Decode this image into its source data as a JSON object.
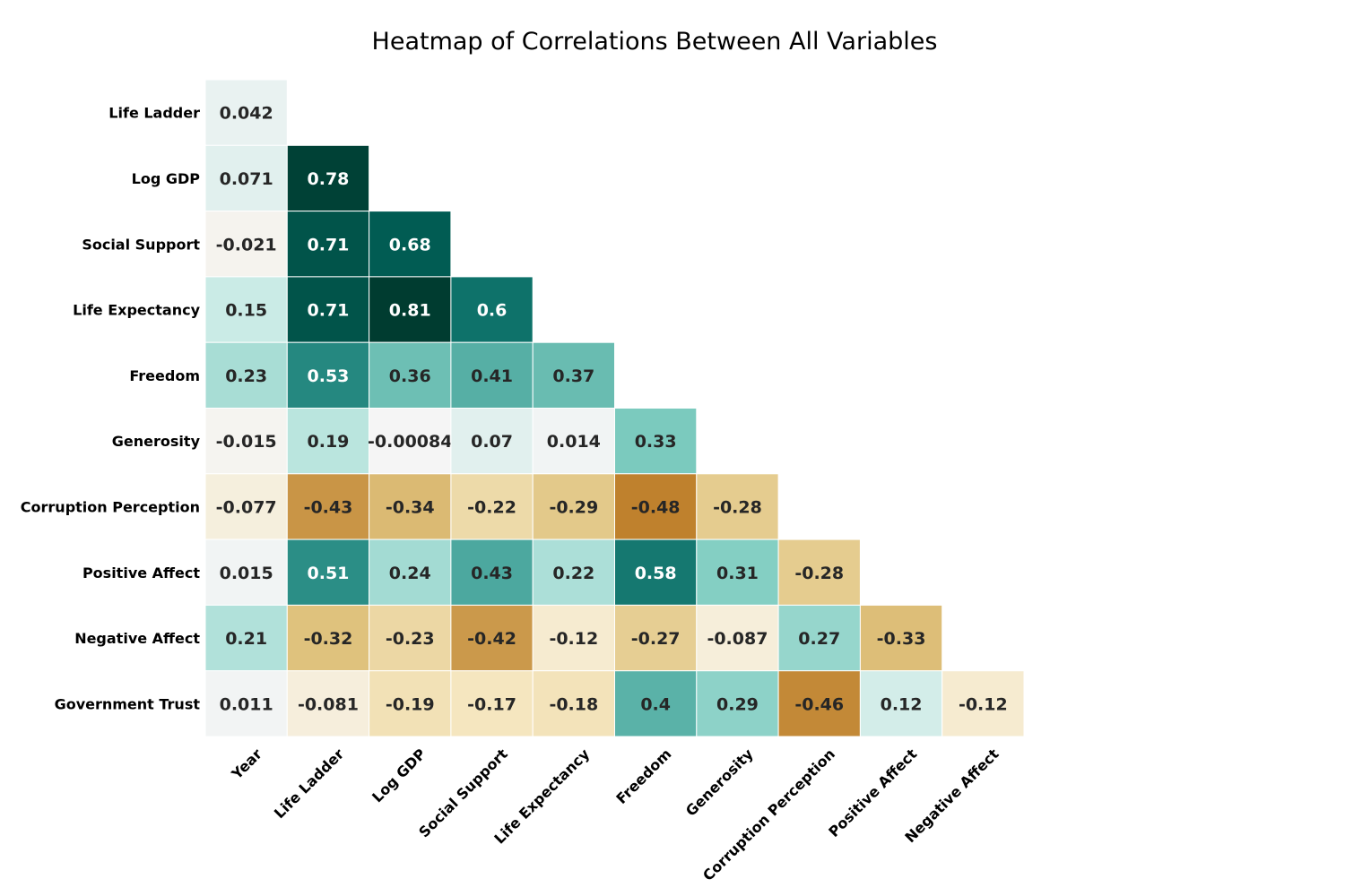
{
  "chart_data": {
    "type": "heatmap",
    "title": "Heatmap of Correlations Between All Variables",
    "colormap": "BrBG",
    "value_range": [
      -0.8,
      0.8
    ],
    "x_labels": [
      "Year",
      "Life Ladder",
      "Log GDP",
      "Social Support",
      "Life Expectancy",
      "Freedom",
      "Generosity",
      "Corruption Perception",
      "Positive Affect",
      "Negative Affect"
    ],
    "y_labels": [
      "Life Ladder",
      "Log GDP",
      "Social Support",
      "Life Expectancy",
      "Freedom",
      "Generosity",
      "Corruption Perception",
      "Positive Affect",
      "Negative Affect",
      "Government Trust"
    ],
    "values": [
      [
        0.042
      ],
      [
        0.071,
        0.78
      ],
      [
        -0.021,
        0.71,
        0.68
      ],
      [
        0.15,
        0.71,
        0.81,
        0.6
      ],
      [
        0.23,
        0.53,
        0.36,
        0.41,
        0.37
      ],
      [
        -0.015,
        0.19,
        -0.00084,
        0.07,
        0.014,
        0.33
      ],
      [
        -0.077,
        -0.43,
        -0.34,
        -0.22,
        -0.29,
        -0.48,
        -0.28
      ],
      [
        0.015,
        0.51,
        0.24,
        0.43,
        0.22,
        0.58,
        0.31,
        -0.28
      ],
      [
        0.21,
        -0.32,
        -0.23,
        -0.42,
        -0.12,
        -0.27,
        -0.087,
        0.27,
        -0.33
      ],
      [
        0.011,
        -0.081,
        -0.19,
        -0.17,
        -0.18,
        0.4,
        0.29,
        -0.46,
        0.12,
        -0.12
      ]
    ],
    "legend": "none",
    "grid": false
  }
}
